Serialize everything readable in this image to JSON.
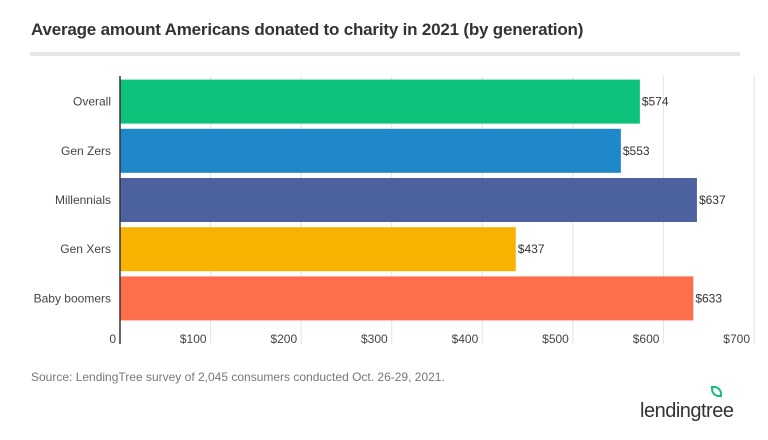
{
  "chart_data": {
    "type": "bar",
    "orientation": "horizontal",
    "title": "Average amount Americans donated to charity in 2021 (by generation)",
    "categories": [
      "Overall",
      "Gen Zers",
      "Millennials",
      "Gen Xers",
      "Baby boomers"
    ],
    "values": [
      574,
      553,
      637,
      437,
      633
    ],
    "data_labels": [
      "$574",
      "$553",
      "$637",
      "$437",
      "$633"
    ],
    "colors": [
      "#0cc17a",
      "#1f88c8",
      "#4c62a0",
      "#f8b300",
      "#ff6e4a"
    ],
    "xlim": [
      0,
      700
    ],
    "x_ticks": [
      0,
      100,
      200,
      300,
      400,
      500,
      600,
      700
    ],
    "x_tick_labels": [
      "0",
      "$100",
      "$200",
      "$300",
      "$400",
      "$500",
      "$600",
      "$700"
    ],
    "grid": true,
    "legend": "none"
  },
  "source": "Source: LendingTree survey of 2,045 consumers conducted Oct. 26-29, 2021.",
  "logo": "lendingtree"
}
